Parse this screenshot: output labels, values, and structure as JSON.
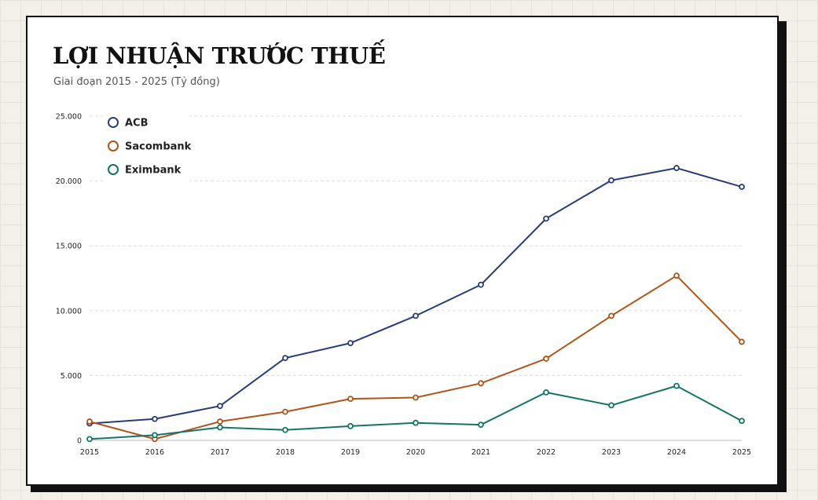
{
  "header": {
    "title": "LỢI NHUẬN TRƯỚC THUẾ",
    "subtitle": "Giai đoạn 2015 - 2025 (Tỷ đồng)"
  },
  "chart_data": {
    "type": "line",
    "title": "LỢI NHUẬN TRƯỚC THUẾ",
    "subtitle": "Giai đoạn 2015 - 2025 (Tỷ đồng)",
    "x": [
      "2015",
      "2016",
      "2017",
      "2018",
      "2019",
      "2020",
      "2021",
      "2022",
      "2023",
      "2024",
      "2025"
    ],
    "ylim": [
      0,
      25000
    ],
    "yticks": [
      0,
      5000,
      10000,
      15000,
      20000,
      25000
    ],
    "ytick_labels": [
      "0",
      "5.000",
      "10.000",
      "15.000",
      "20.000",
      "25.000"
    ],
    "grid": "horizontal-dashed",
    "legend_position": "top-left",
    "series": [
      {
        "name": "ACB",
        "color": "#283d7a",
        "values": [
          1300,
          1650,
          2650,
          6350,
          7500,
          9600,
          12000,
          17100,
          20050,
          21000,
          19550
        ]
      },
      {
        "name": "Sacombank",
        "color": "#b1541b",
        "values": [
          1450,
          100,
          1450,
          2200,
          3200,
          3300,
          4400,
          6300,
          9600,
          12700,
          7600
        ]
      },
      {
        "name": "Eximbank",
        "color": "#157565",
        "values": [
          100,
          400,
          1000,
          800,
          1100,
          1350,
          1200,
          3700,
          2700,
          4200,
          1500
        ]
      }
    ]
  }
}
